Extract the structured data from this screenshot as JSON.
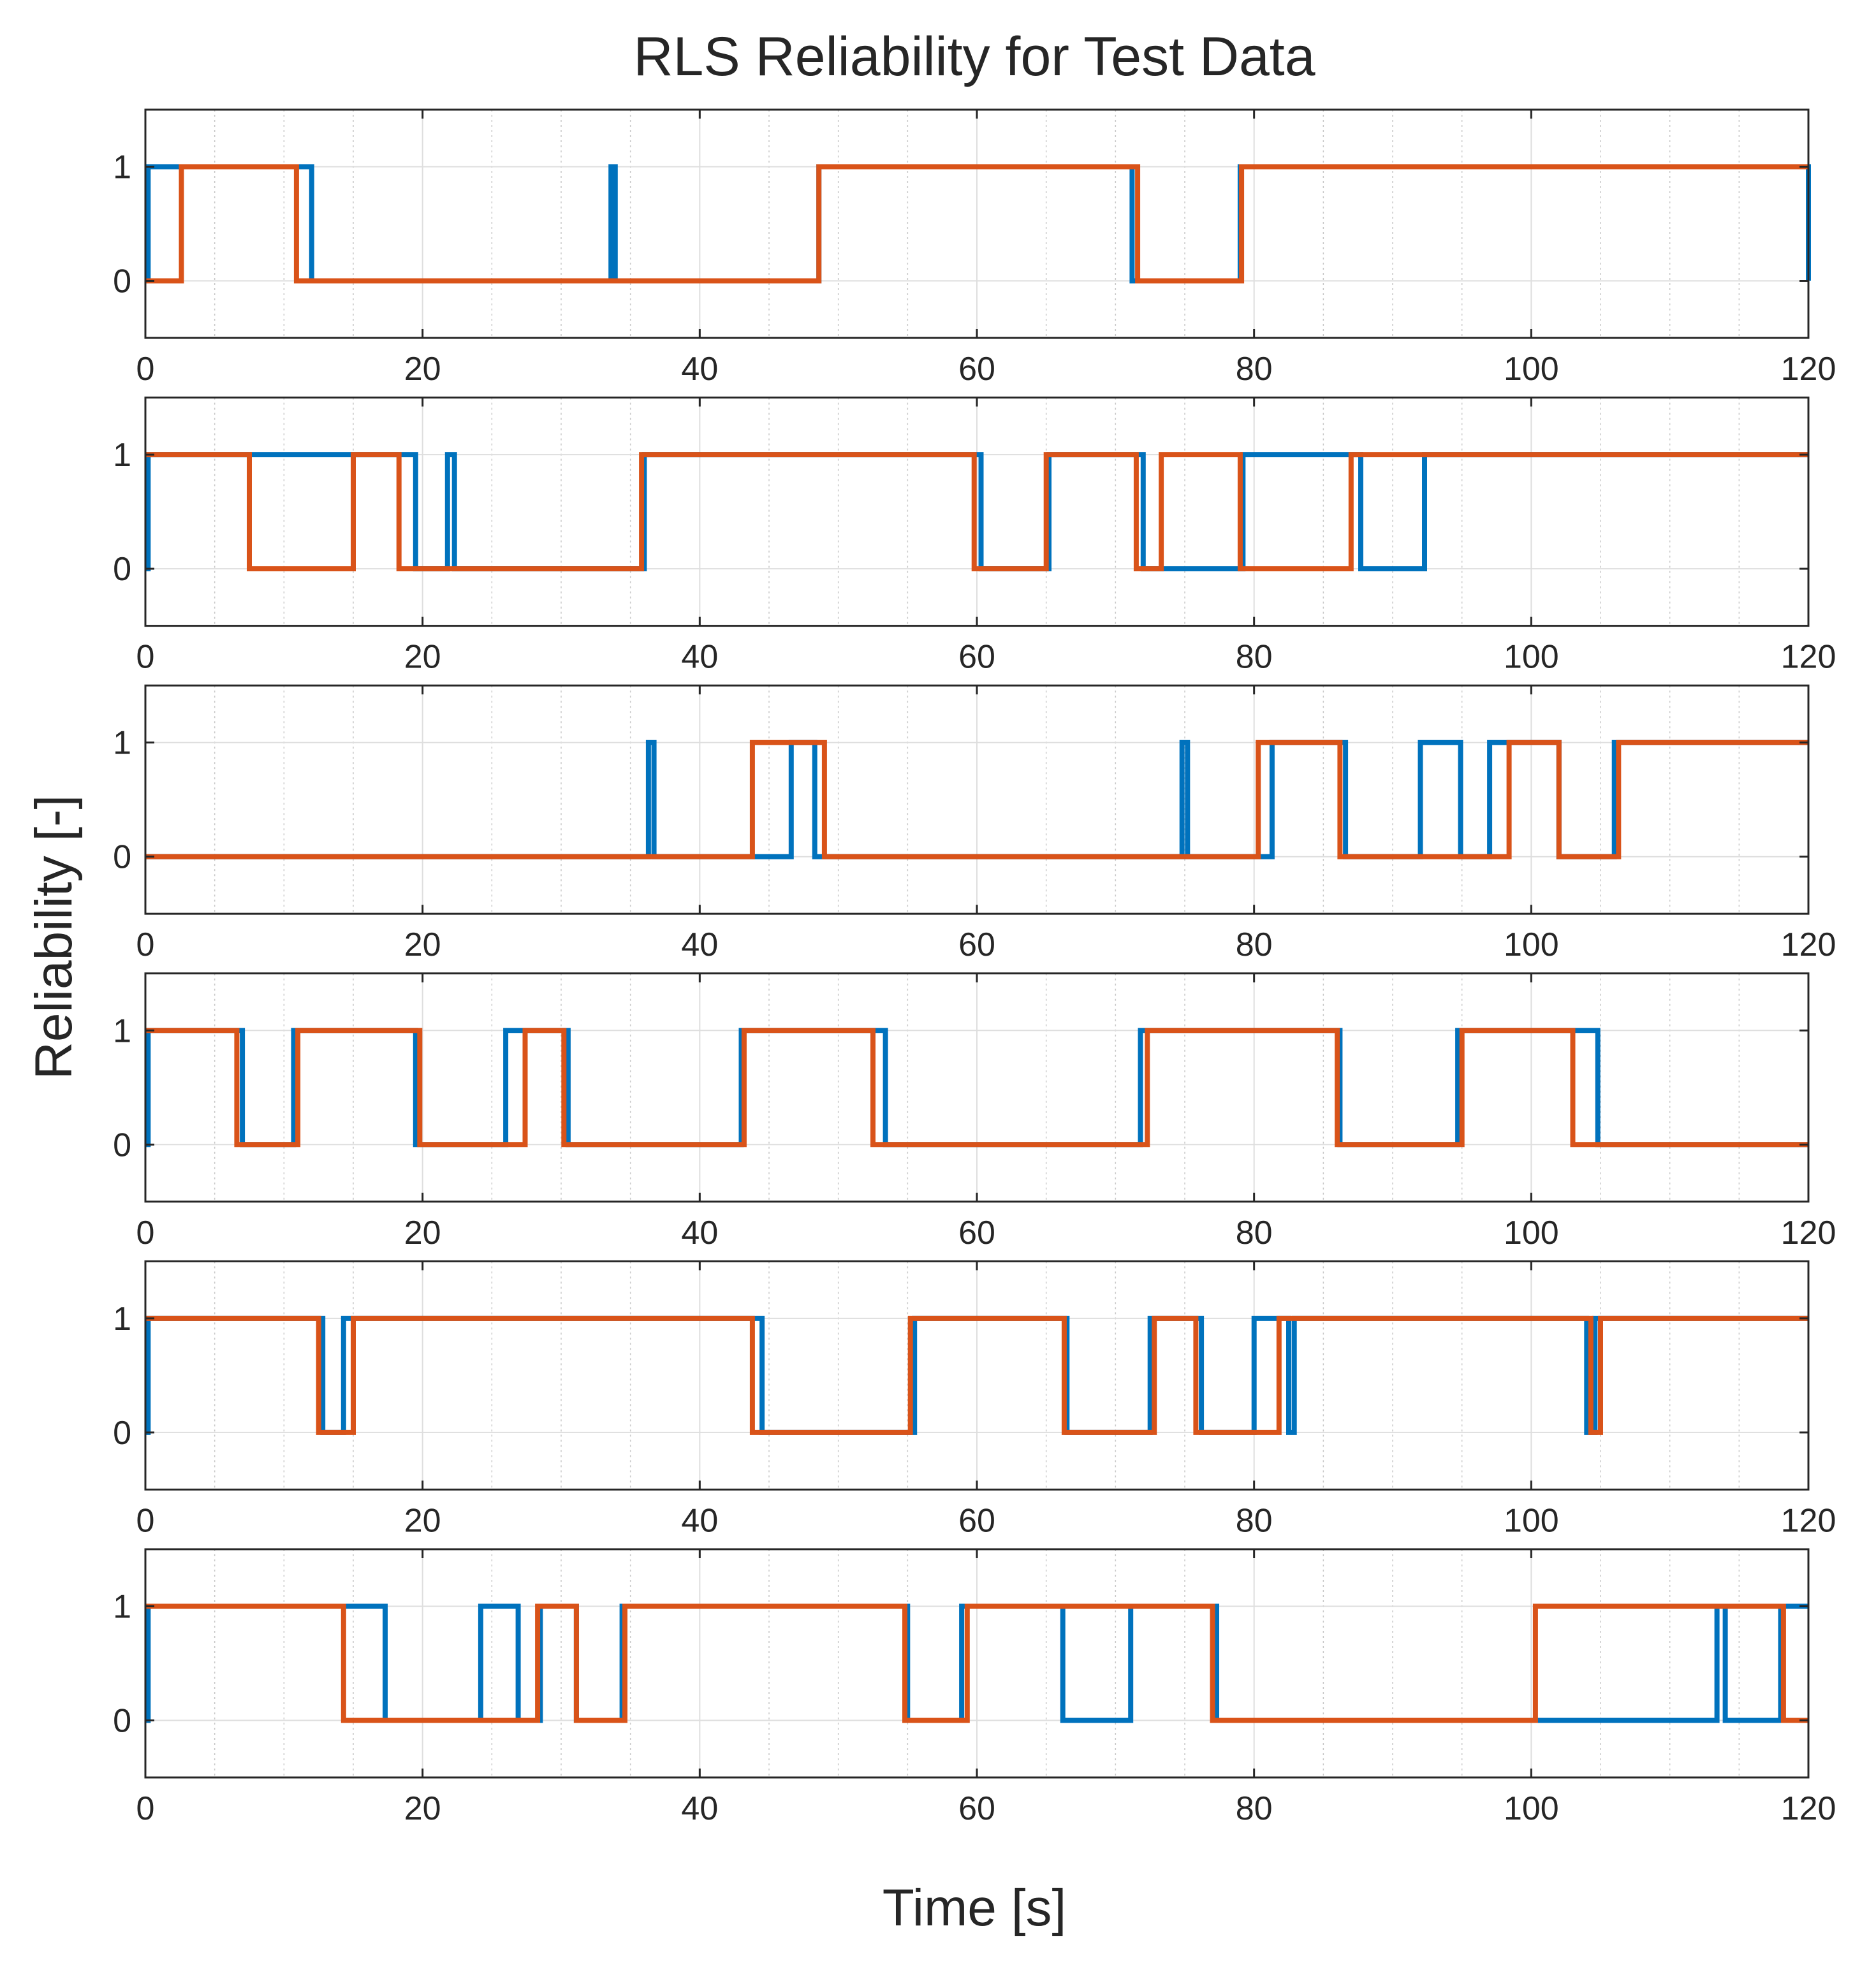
{
  "chart_data": {
    "type": "line",
    "step": true,
    "title": "RLS Reliability for Test Data",
    "xlabel": "Time [s]",
    "ylabel": "Reliability [-]",
    "xlim": [
      0,
      120
    ],
    "ylim": [
      -0.5,
      1.5
    ],
    "xticks": [
      0,
      20,
      40,
      60,
      80,
      100,
      120
    ],
    "yticks": [
      0,
      1
    ],
    "xtick_labels": [
      "0",
      "20",
      "40",
      "60",
      "80",
      "100",
      "120"
    ],
    "ytick_labels": [
      "0",
      "1"
    ],
    "grid": true,
    "minor_grid": true,
    "colors": {
      "series_1": "#0072BD",
      "series_2": "#D95319",
      "axes": "#262626"
    },
    "panels": [
      {
        "series": [
          {
            "name": "series_1",
            "color": "#0072BD",
            "x": [
              0,
              0.2,
              12,
              33.6,
              33.9,
              48.6,
              71.2,
              79,
              120,
              120
            ],
            "y": [
              0,
              1,
              0,
              1,
              0,
              1,
              0,
              1,
              0,
              0
            ]
          },
          {
            "name": "series_2",
            "color": "#D95319",
            "x": [
              0,
              2.6,
              10.9,
              48.6,
              71.6,
              79.1,
              120
            ],
            "y": [
              0,
              1,
              0,
              1,
              0,
              1,
              1
            ]
          }
        ]
      },
      {
        "series": [
          {
            "name": "series_1",
            "color": "#0072BD",
            "x": [
              0,
              0.2,
              19.5,
              21.8,
              22.3,
              36,
              60.3,
              65.2,
              72,
              79.2,
              87.7,
              92.3,
              120
            ],
            "y": [
              0,
              1,
              0,
              1,
              0,
              1,
              0,
              1,
              0,
              1,
              0,
              1,
              1
            ]
          },
          {
            "name": "series_2",
            "color": "#D95319",
            "x": [
              0,
              7.5,
              15,
              18.3,
              35.8,
              59.8,
              65,
              71.5,
              73.3,
              79,
              87,
              120
            ],
            "y": [
              1,
              0,
              1,
              0,
              1,
              0,
              1,
              0,
              1,
              0,
              1,
              1
            ]
          }
        ]
      },
      {
        "series": [
          {
            "name": "series_1",
            "color": "#0072BD",
            "x": [
              0,
              36.3,
              36.7,
              46.6,
              48.3,
              74.8,
              75.2,
              81.3,
              86.6,
              92,
              94.9,
              97,
              102,
              106,
              120
            ],
            "y": [
              0,
              1,
              0,
              1,
              0,
              1,
              0,
              1,
              0,
              1,
              0,
              1,
              0,
              1,
              1
            ]
          },
          {
            "name": "series_2",
            "color": "#D95319",
            "x": [
              0,
              43.8,
              49,
              80.3,
              86.2,
              98.4,
              102,
              106.3,
              120
            ],
            "y": [
              0,
              1,
              0,
              1,
              0,
              1,
              0,
              1,
              1
            ]
          }
        ]
      },
      {
        "series": [
          {
            "name": "series_1",
            "color": "#0072BD",
            "x": [
              0,
              0.2,
              7,
              10.7,
              19.5,
              26,
              30.5,
              43,
              53.4,
              71.8,
              86.2,
              94.7,
              104.8,
              120
            ],
            "y": [
              0,
              1,
              0,
              1,
              0,
              1,
              0,
              1,
              0,
              1,
              0,
              1,
              0,
              0
            ]
          },
          {
            "name": "series_2",
            "color": "#D95319",
            "x": [
              0,
              6.6,
              11,
              19.8,
              27.4,
              30.2,
              43.2,
              52.5,
              72.3,
              86,
              95,
              103,
              120
            ],
            "y": [
              1,
              0,
              1,
              0,
              1,
              0,
              1,
              0,
              1,
              0,
              1,
              0,
              0
            ]
          }
        ]
      },
      {
        "series": [
          {
            "name": "series_1",
            "color": "#0072BD",
            "x": [
              0,
              0.2,
              12.8,
              14.3,
              44.5,
              55.5,
              66.5,
              72.5,
              76.2,
              80,
              82.5,
              82.9,
              104,
              104.6,
              120
            ],
            "y": [
              0,
              1,
              0,
              1,
              0,
              1,
              0,
              1,
              0,
              1,
              0,
              1,
              0,
              1,
              1
            ]
          },
          {
            "name": "series_2",
            "color": "#D95319",
            "x": [
              0,
              12.5,
              15,
              43.8,
              55.2,
              66.3,
              72.8,
              75.8,
              81.8,
              104.3,
              105,
              120
            ],
            "y": [
              1,
              0,
              1,
              0,
              1,
              0,
              1,
              0,
              1,
              0,
              1,
              1
            ]
          }
        ]
      },
      {
        "series": [
          {
            "name": "series_1",
            "color": "#0072BD",
            "x": [
              0,
              0.2,
              17.3,
              24.2,
              26.9,
              28.5,
              31.1,
              34.4,
              55,
              58.9,
              66.2,
              71.1,
              77.3,
              113.4,
              114,
              118,
              120
            ],
            "y": [
              0,
              1,
              0,
              1,
              0,
              1,
              0,
              1,
              0,
              1,
              0,
              1,
              0,
              1,
              0,
              1,
              1
            ]
          },
          {
            "name": "series_2",
            "color": "#D95319",
            "x": [
              0,
              14.3,
              28.3,
              31.1,
              34.6,
              54.8,
              59.3,
              77,
              100.3,
              118.2,
              120
            ],
            "y": [
              1,
              0,
              1,
              0,
              1,
              0,
              1,
              0,
              1,
              0,
              0
            ]
          }
        ]
      }
    ]
  }
}
